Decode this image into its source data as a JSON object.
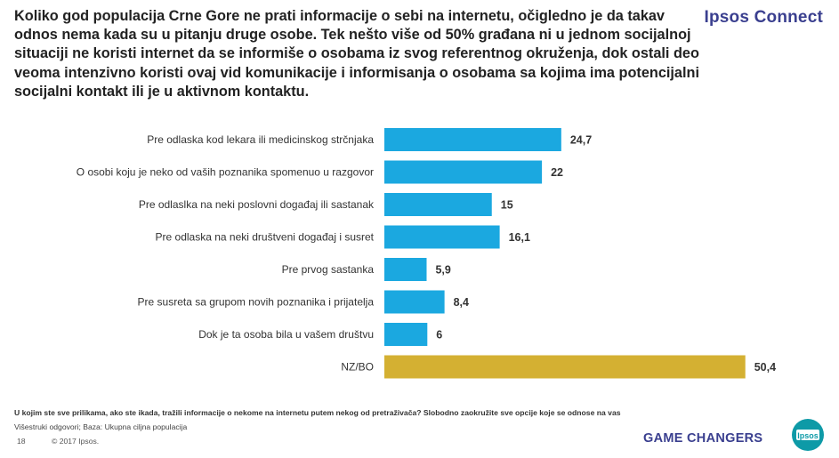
{
  "header": {
    "headline": "Koliko god populacija Crne Gore ne prati informacije o sebi na internetu, očigledno je da takav odnos nema kada su u pitanju druge osobe. Tek nešto više od 50% građana ni u jednom socijalnoj situaciji ne koristi internet da se informiše o osobama iz svog referentnog okruženja, dok ostali deo veoma intenzivno koristi ovaj vid komunikacije i informisanja o osobama sa kojima ima potencijalni socijalni kontakt ili je u aktivnom kontaktu.",
    "brand": "Ipsos Connect"
  },
  "chart_data": {
    "type": "bar",
    "orientation": "horizontal",
    "categories": [
      "Pre odlaska kod lekara ili medicinskog strčnjaka",
      "O osobi koju je neko od vaših poznanika spomenuo u razgovor",
      "Pre odlaslka na neki poslovni događaj ili sastanak",
      "Pre odlaska na neki društveni događaj i susret",
      "Pre prvog sastanka",
      "Pre susreta sa grupom novih poznanika i prijatelja",
      "Dok je ta osoba bila u vašem društvu",
      "NZ/BO"
    ],
    "values": [
      24.7,
      22,
      15,
      16.1,
      5.9,
      8.4,
      6,
      50.4
    ],
    "value_labels": [
      "24,7",
      "22",
      "15",
      "16,1",
      "5,9",
      "8,4",
      "6",
      "50,4"
    ],
    "colors": [
      "#1ba8e0",
      "#1ba8e0",
      "#1ba8e0",
      "#1ba8e0",
      "#1ba8e0",
      "#1ba8e0",
      "#1ba8e0",
      "#d4b032"
    ],
    "xlim": [
      0,
      100
    ],
    "grid": false,
    "legend": "none"
  },
  "footer": {
    "question": "U kojim ste sve prilikama, ako ste ikada, tražili informacije o nekome na internetu putem nekog od pretraživača? Slobodno zaokružite sve opcije koje se odnose na vas",
    "base": "Višestruki odgovori; Baza: Ukupna ciljna populacija",
    "page_number": "18",
    "copyright": "© 2017 Ipsos.",
    "tagline": "GAME CHANGERS",
    "logo_text": "Ipsos"
  },
  "colors": {
    "bar": "#1ba8e0",
    "bar_highlight": "#d4b032",
    "brand": "#3a3f8f",
    "logo_bg": "#0e9aa7"
  }
}
